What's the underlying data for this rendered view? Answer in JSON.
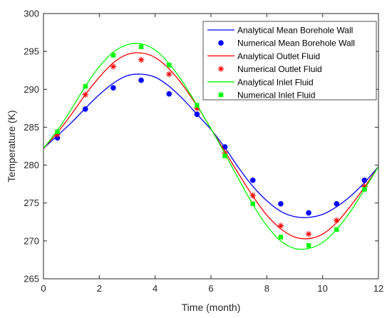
{
  "chart_data": {
    "type": "line",
    "title": "",
    "xlabel": "Time (month)",
    "ylabel": "Temperature (K)",
    "xlim": [
      0,
      12
    ],
    "ylim": [
      265,
      300
    ],
    "xticks": [
      0,
      2,
      4,
      6,
      8,
      10,
      12
    ],
    "yticks": [
      265,
      270,
      275,
      280,
      285,
      290,
      295,
      300
    ],
    "grid": false,
    "legend_position": "top-right",
    "series": [
      {
        "name": "Analytical Mean Borehole Wall",
        "kind": "line",
        "color": "#0000ff",
        "x": [
          0,
          0.5,
          1,
          1.5,
          2,
          2.5,
          3,
          3.5,
          4,
          4.5,
          5,
          5.5,
          6,
          6.5,
          7,
          7.5,
          8,
          8.5,
          9,
          9.5,
          10,
          10.5,
          11,
          11.5,
          12
        ],
        "y": [
          282.2,
          283.9,
          285.6,
          287.5,
          289.3,
          290.8,
          291.8,
          292.0,
          291.6,
          290.4,
          288.7,
          286.7,
          284.7,
          282.3,
          279.6,
          277.2,
          275.3,
          273.9,
          273.2,
          273.1,
          273.5,
          274.5,
          275.9,
          277.7,
          279.8
        ]
      },
      {
        "name": "Numerical Mean Borehole Wall",
        "kind": "marker",
        "marker": "circle",
        "color": "#0000ff",
        "x": [
          0.5,
          1.5,
          2.5,
          3.5,
          4.5,
          5.5,
          6.5,
          7.5,
          8.5,
          9.5,
          10.5,
          11.5
        ],
        "y": [
          283.6,
          287.4,
          290.2,
          291.2,
          289.4,
          286.7,
          282.4,
          278.0,
          274.9,
          273.7,
          274.9,
          278.0
        ]
      },
      {
        "name": "Analytical Outlet Fluid",
        "kind": "line",
        "color": "#ff0000",
        "x": [
          0,
          0.5,
          1,
          1.5,
          2,
          2.5,
          3,
          3.5,
          4,
          4.5,
          5,
          5.5,
          6,
          6.5,
          7,
          7.5,
          8,
          8.5,
          9,
          9.5,
          10,
          10.5,
          11,
          11.5,
          12
        ],
        "y": [
          282.2,
          284.3,
          286.7,
          289.3,
          291.6,
          293.5,
          294.6,
          294.8,
          294.2,
          292.7,
          290.5,
          287.8,
          284.8,
          281.8,
          278.8,
          275.9,
          273.4,
          271.6,
          270.5,
          270.3,
          270.9,
          272.4,
          274.6,
          277.1,
          279.8
        ]
      },
      {
        "name": "Numerical Outlet Fluid",
        "kind": "marker",
        "marker": "asterisk",
        "color": "#ff0000",
        "x": [
          0.5,
          1.5,
          2.5,
          3.5,
          4.5,
          5.5,
          6.5,
          7.5,
          8.5,
          9.5,
          10.5,
          11.5
        ],
        "y": [
          284.0,
          289.3,
          293.0,
          293.9,
          292.0,
          287.5,
          281.6,
          276.0,
          272.0,
          270.9,
          272.7,
          277.2
        ]
      },
      {
        "name": "Analytical Inlet Fluid",
        "kind": "line",
        "color": "#00ff00",
        "x": [
          0,
          0.5,
          1,
          1.5,
          2,
          2.5,
          3,
          3.5,
          4,
          4.5,
          5,
          5.5,
          6,
          6.5,
          7,
          7.5,
          8,
          8.5,
          9,
          9.5,
          10,
          10.5,
          11,
          11.5,
          12
        ],
        "y": [
          282.2,
          284.6,
          287.4,
          290.4,
          293.0,
          294.9,
          295.9,
          296.0,
          295.2,
          293.4,
          290.9,
          287.9,
          284.8,
          281.5,
          278.1,
          274.8,
          272.0,
          270.0,
          269.0,
          269.0,
          269.8,
          271.5,
          273.9,
          276.8,
          279.8
        ]
      },
      {
        "name": "Numerical Inlet Fluid",
        "kind": "marker",
        "marker": "square",
        "color": "#00ff00",
        "x": [
          0.5,
          1.5,
          2.5,
          3.5,
          4.5,
          5.5,
          6.5,
          7.5,
          8.5,
          9.5,
          10.5,
          11.5
        ],
        "y": [
          284.4,
          290.4,
          294.5,
          295.6,
          293.2,
          287.9,
          281.2,
          274.9,
          270.5,
          269.4,
          271.5,
          276.8
        ]
      }
    ]
  }
}
